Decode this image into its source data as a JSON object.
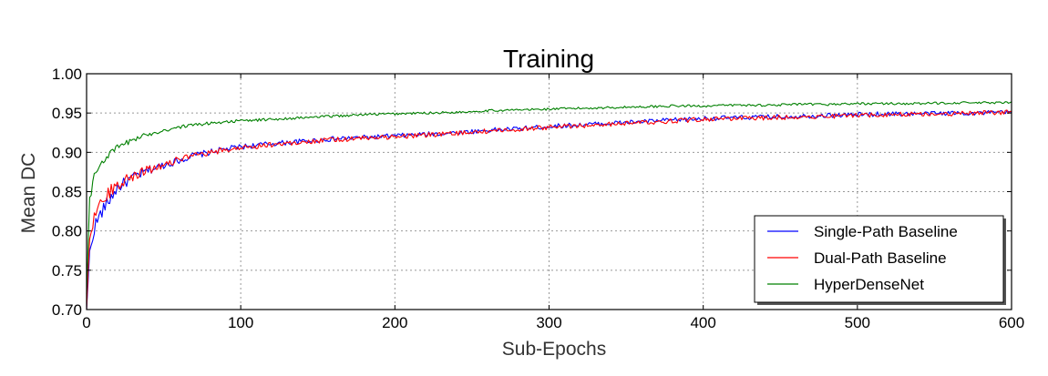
{
  "chart_data": {
    "type": "line",
    "title": "Training",
    "xlabel": "Sub-Epochs",
    "ylabel": "Mean DC",
    "xlim": [
      0,
      600
    ],
    "ylim": [
      0.7,
      1.0
    ],
    "xticks": [
      0,
      100,
      200,
      300,
      400,
      500,
      600
    ],
    "yticks": [
      0.7,
      0.75,
      0.8,
      0.85,
      0.9,
      0.95,
      1.0
    ],
    "xtick_labels": [
      "0",
      "100",
      "200",
      "300",
      "400",
      "500",
      "600"
    ],
    "ytick_labels": [
      "0.70",
      "0.75",
      "0.80",
      "0.85",
      "0.90",
      "0.95",
      "1.00"
    ],
    "grid": true,
    "legend_position": "bottom-right",
    "series": [
      {
        "name": "Single-Path Baseline",
        "color": "#0000ff",
        "x": [
          0,
          2,
          5,
          10,
          15,
          20,
          30,
          40,
          50,
          60,
          70,
          80,
          90,
          100,
          120,
          140,
          160,
          180,
          200,
          220,
          240,
          260,
          280,
          300,
          320,
          340,
          360,
          380,
          400,
          420,
          440,
          460,
          480,
          500,
          520,
          540,
          560,
          580,
          600
        ],
        "y": [
          0.7,
          0.77,
          0.805,
          0.825,
          0.84,
          0.855,
          0.868,
          0.877,
          0.884,
          0.89,
          0.896,
          0.9,
          0.904,
          0.907,
          0.911,
          0.914,
          0.917,
          0.919,
          0.921,
          0.923,
          0.925,
          0.928,
          0.93,
          0.933,
          0.935,
          0.937,
          0.939,
          0.941,
          0.943,
          0.944,
          0.945,
          0.946,
          0.947,
          0.948,
          0.949,
          0.949,
          0.95,
          0.95,
          0.951
        ]
      },
      {
        "name": "Dual-Path Baseline",
        "color": "#ff0000",
        "x": [
          0,
          2,
          5,
          10,
          15,
          20,
          30,
          40,
          50,
          60,
          70,
          80,
          90,
          100,
          120,
          140,
          160,
          180,
          200,
          220,
          240,
          260,
          280,
          300,
          320,
          340,
          360,
          380,
          400,
          420,
          440,
          460,
          480,
          500,
          520,
          540,
          560,
          580,
          600
        ],
        "y": [
          0.7,
          0.795,
          0.82,
          0.838,
          0.85,
          0.86,
          0.87,
          0.878,
          0.885,
          0.891,
          0.895,
          0.899,
          0.903,
          0.906,
          0.91,
          0.913,
          0.916,
          0.918,
          0.92,
          0.922,
          0.924,
          0.927,
          0.929,
          0.932,
          0.934,
          0.936,
          0.938,
          0.94,
          0.942,
          0.943,
          0.944,
          0.945,
          0.946,
          0.947,
          0.948,
          0.949,
          0.949,
          0.95,
          0.951
        ]
      },
      {
        "name": "HyperDenseNet",
        "color": "#008000",
        "x": [
          0,
          2,
          5,
          10,
          15,
          20,
          30,
          40,
          50,
          60,
          70,
          80,
          90,
          100,
          120,
          140,
          160,
          180,
          200,
          220,
          240,
          260,
          280,
          300,
          320,
          340,
          360,
          380,
          400,
          420,
          440,
          460,
          480,
          500,
          520,
          540,
          560,
          580,
          600
        ],
        "y": [
          0.72,
          0.84,
          0.87,
          0.888,
          0.898,
          0.906,
          0.916,
          0.923,
          0.928,
          0.932,
          0.935,
          0.937,
          0.939,
          0.94,
          0.942,
          0.944,
          0.946,
          0.948,
          0.949,
          0.95,
          0.951,
          0.953,
          0.954,
          0.955,
          0.956,
          0.957,
          0.958,
          0.959,
          0.959,
          0.96,
          0.96,
          0.961,
          0.961,
          0.962,
          0.962,
          0.962,
          0.963,
          0.963,
          0.963
        ]
      }
    ]
  }
}
